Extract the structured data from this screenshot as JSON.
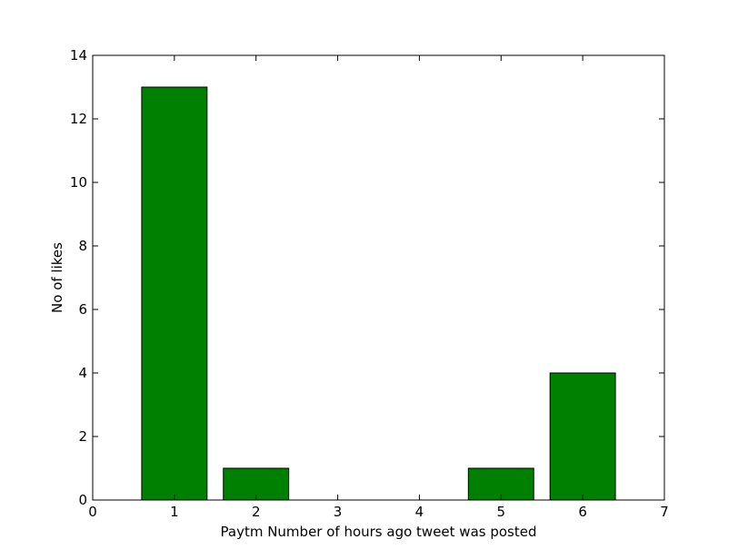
{
  "chart_data": {
    "type": "bar",
    "x": [
      1,
      2,
      3,
      4,
      5,
      6
    ],
    "values": [
      13,
      1,
      0,
      0,
      1,
      4
    ],
    "xlabel": "Paytm Number of hours ago tweet was posted",
    "ylabel": "No of likes",
    "xlim": [
      0,
      7
    ],
    "ylim": [
      0,
      14
    ],
    "xticks": [
      "0",
      "1",
      "2",
      "3",
      "4",
      "5",
      "6",
      "7"
    ],
    "yticks": [
      "0",
      "2",
      "4",
      "6",
      "8",
      "10",
      "12",
      "14"
    ],
    "bar_width": 0.8,
    "bar_color": "#008000",
    "edge_color": "#000000",
    "grid": false
  }
}
